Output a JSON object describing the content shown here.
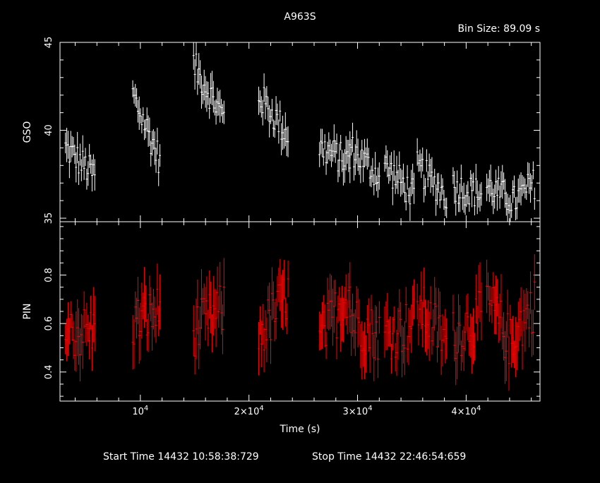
{
  "chart_data": {
    "type": "line",
    "title": "A963S",
    "bin_size_label": "Bin Size: 89.09 s",
    "xlabel": "Time (s)",
    "xlim": [
      2600,
      46800
    ],
    "x_tick_labels": [
      {
        "base": "10",
        "exp": "4",
        "x": 10000
      },
      {
        "base": "2×10",
        "exp": "4",
        "x": 20000
      },
      {
        "base": "3×10",
        "exp": "4",
        "x": 30000
      },
      {
        "base": "4×10",
        "exp": "4",
        "x": 40000
      }
    ],
    "footer": {
      "start": "Start Time 14432 10:58:38:729",
      "stop": "Stop Time 14432 22:46:54:659"
    },
    "panels": [
      {
        "name": "GSO",
        "ylabel": "GSO",
        "color": "#ffffff",
        "ylim": [
          34.8,
          45
        ],
        "y_ticks": [
          {
            "label": "35",
            "value": 35.0
          },
          {
            "label": "40",
            "value": 40
          },
          {
            "label": "45",
            "value": 45
          }
        ],
        "segments": [
          {
            "x": [
              3100,
              5800
            ],
            "y": [
              39.0,
              37.4
            ]
          },
          {
            "x": [
              9300,
              11800
            ],
            "y": [
              42.0,
              38.3
            ]
          },
          {
            "x": [
              14900,
              17700
            ],
            "y": [
              43.7,
              40.7
            ]
          },
          {
            "x": [
              20900,
              23600
            ],
            "y": [
              42.0,
              39.7
            ]
          },
          {
            "x": [
              26500,
              29300
            ],
            "y": [
              39.0,
              38.2
            ]
          },
          {
            "x": [
              29300,
              32000
            ],
            "y": [
              39.0,
              37.4
            ]
          },
          {
            "x": [
              32500,
              35200
            ],
            "y": [
              38.0,
              36.3
            ]
          },
          {
            "x": [
              35500,
              38200
            ],
            "y": [
              37.9,
              36.3
            ]
          },
          {
            "x": [
              38800,
              41400
            ],
            "y": [
              36.8,
              36.4
            ]
          },
          {
            "x": [
              41900,
              44300
            ],
            "y": [
              36.8,
              36.0
            ]
          },
          {
            "x": [
              44300,
              46300
            ],
            "y": [
              35.9,
              37.0
            ]
          }
        ]
      },
      {
        "name": "PIN",
        "ylabel": "PIN",
        "color": "#ff0000",
        "ylim": [
          0.28,
          1.02
        ],
        "y_ticks": [
          {
            "label": "0.4",
            "value": 0.4
          },
          {
            "label": "0.6",
            "value": 0.6
          },
          {
            "label": "0.8",
            "value": 0.8
          }
        ],
        "segments": [
          {
            "x": [
              3100,
              5800
            ],
            "y": [
              0.56,
              0.57
            ]
          },
          {
            "x": [
              9300,
              11800
            ],
            "y": [
              0.6,
              0.65
            ]
          },
          {
            "x": [
              14900,
              17700
            ],
            "y": [
              0.57,
              0.66
            ]
          },
          {
            "x": [
              20900,
              23600
            ],
            "y": [
              0.55,
              0.72
            ]
          },
          {
            "x": [
              26500,
              29300
            ],
            "y": [
              0.52,
              0.75
            ]
          },
          {
            "x": [
              29300,
              32000
            ],
            "y": [
              0.62,
              0.55
            ]
          },
          {
            "x": [
              32500,
              35200
            ],
            "y": [
              0.55,
              0.6
            ]
          },
          {
            "x": [
              35500,
              38200
            ],
            "y": [
              0.68,
              0.52
            ]
          },
          {
            "x": [
              38800,
              41400
            ],
            "y": [
              0.55,
              0.63
            ]
          },
          {
            "x": [
              41900,
              44300
            ],
            "y": [
              0.7,
              0.5
            ]
          },
          {
            "x": [
              44300,
              46300
            ],
            "y": [
              0.55,
              0.68
            ]
          }
        ]
      }
    ]
  }
}
